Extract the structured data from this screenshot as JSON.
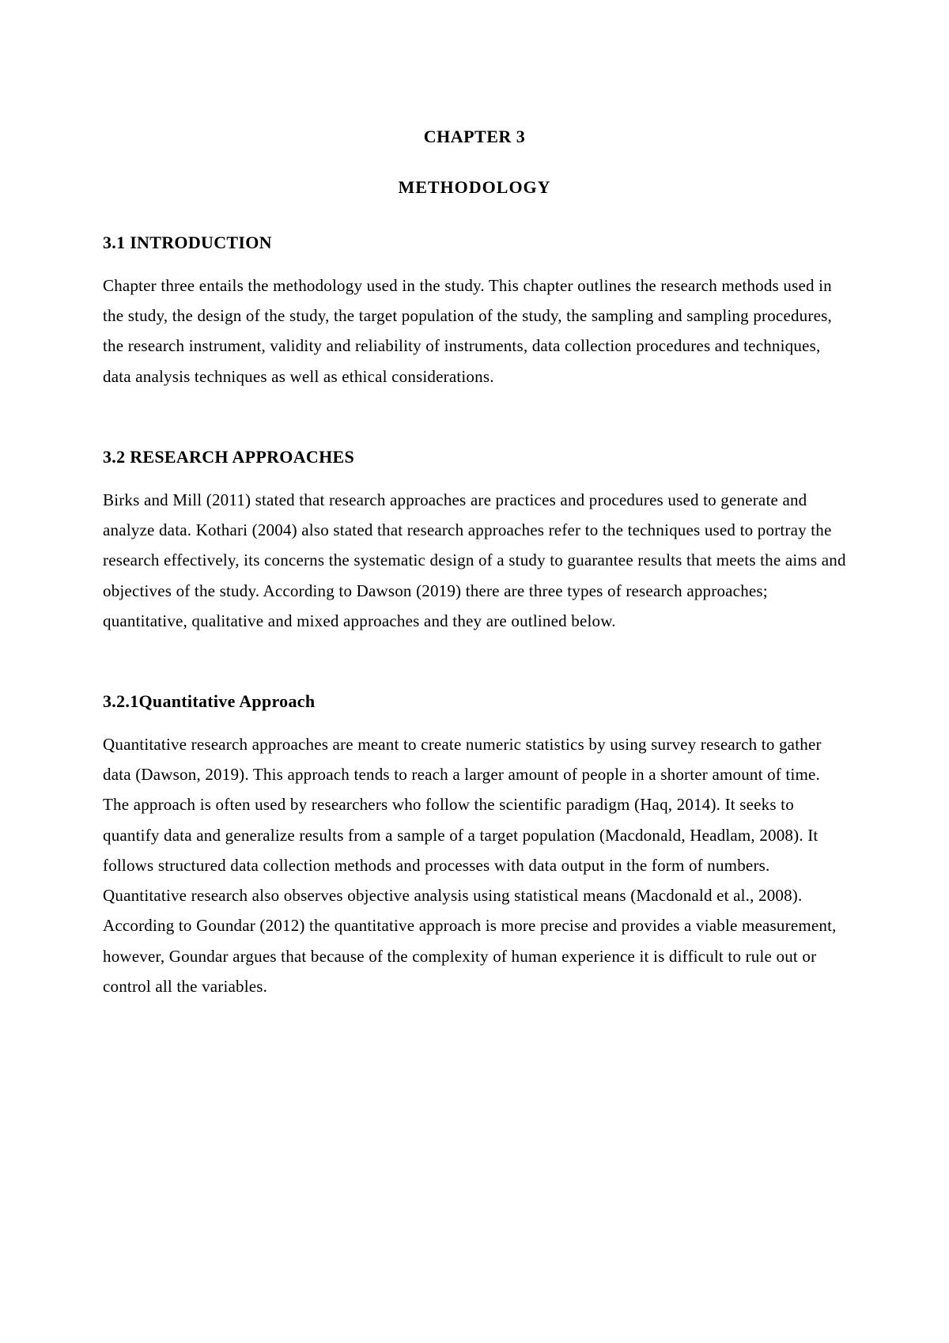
{
  "chapter": {
    "number": "CHAPTER 3",
    "title": "METHODOLOGY"
  },
  "sections": [
    {
      "heading": "3.1 INTRODUCTION",
      "body": "Chapter three entails the methodology used in the study. This chapter outlines the research methods used in the study, the design of the study, the target population of the study, the sampling and sampling procedures, the research instrument, validity and reliability of instruments, data collection procedures and techniques, data analysis techniques as well as ethical considerations."
    },
    {
      "heading": "3.2 RESEARCH APPROACHES",
      "body": "Birks and Mill (2011) stated that research approaches are practices and procedures used to generate and analyze data.  Kothari (2004) also stated that research approaches refer to the techniques used to portray the research effectively, its concerns the systematic design of a study to guarantee results that meets the aims and objectives of the study. According to Dawson (2019) there are three types of research approaches; quantitative, qualitative and mixed approaches and they are outlined below."
    },
    {
      "heading": "3.2.1Quantitative Approach",
      "body": "Quantitative research approaches are meant to create numeric statistics by using survey research to gather data (Dawson, 2019).  This approach tends to reach a larger amount of people in a shorter amount of time. The approach is often used by researchers who follow the scientific paradigm (Haq, 2014). It seeks to quantify data and generalize results from a sample of a target population (Macdonald, Headlam, 2008). It follows structured data collection methods and processes with data output in the form of numbers. Quantitative research also observes objective analysis using statistical means (Macdonald et al., 2008). According to Goundar (2012) the quantitative approach is more precise and provides a viable measurement, however, Goundar argues that because of the complexity of human experience it is difficult to rule out or control all the variables."
    }
  ]
}
